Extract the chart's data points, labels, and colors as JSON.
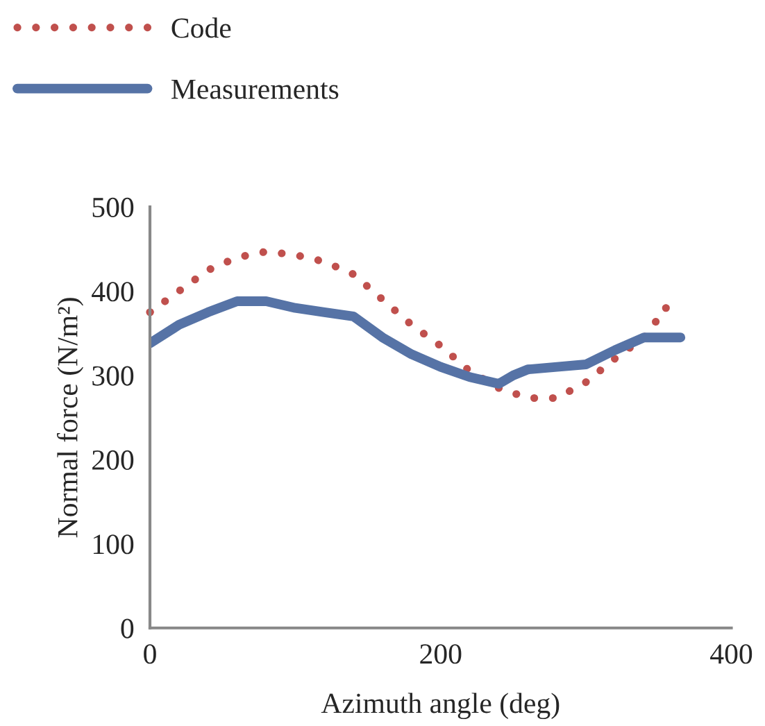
{
  "chart_data": {
    "type": "line",
    "xlabel": "Azimuth angle (deg)",
    "ylabel": "Normal force (N/m²)",
    "xlim": [
      0,
      400
    ],
    "xticks": [
      0,
      200,
      400
    ],
    "ylim": [
      0,
      500
    ],
    "yticks": [
      0,
      100,
      200,
      300,
      400,
      500
    ],
    "grid": false,
    "legend": "top left",
    "marker": "none",
    "series": [
      {
        "name": "Code",
        "color": "#c0504d",
        "line_style": "dotted",
        "x": [
          0,
          20,
          40,
          60,
          80,
          100,
          120,
          140,
          160,
          180,
          200,
          220,
          240,
          260,
          280,
          300,
          320,
          340,
          355
        ],
        "values": [
          375,
          400,
          425,
          440,
          447,
          443,
          435,
          420,
          390,
          360,
          335,
          305,
          285,
          273,
          273,
          292,
          320,
          345,
          380
        ]
      },
      {
        "name": "Measurements",
        "color": "#5673a6",
        "line_style": "solid",
        "x": [
          0,
          20,
          40,
          60,
          80,
          100,
          120,
          140,
          160,
          180,
          200,
          220,
          240,
          250,
          260,
          280,
          300,
          320,
          340,
          365
        ],
        "values": [
          338,
          360,
          375,
          388,
          388,
          380,
          375,
          370,
          345,
          325,
          310,
          298,
          290,
          300,
          307,
          310,
          313,
          330,
          345,
          345
        ]
      }
    ]
  }
}
